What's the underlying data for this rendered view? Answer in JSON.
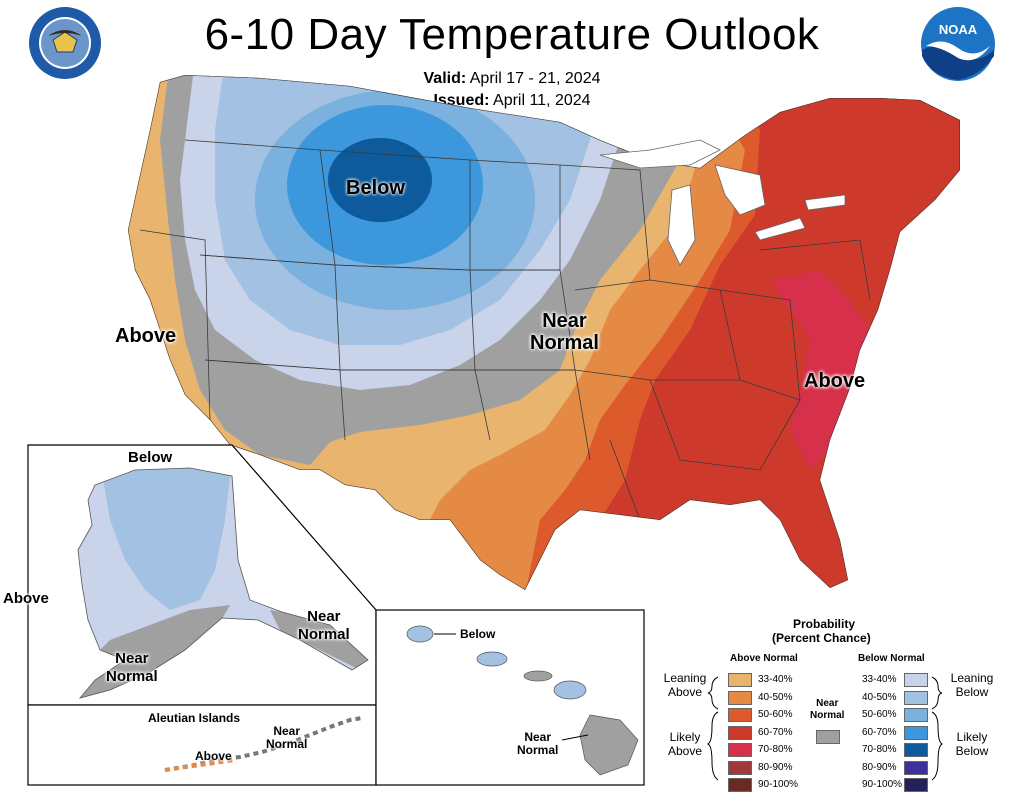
{
  "header": {
    "title": "6-10 Day Temperature Outlook",
    "valid_label": "Valid:",
    "valid_value": "April 17 - 21, 2024",
    "issued_label": "Issued:",
    "issued_value": "April 11, 2024",
    "noaa_logo_text": "NOAA"
  },
  "map_labels": {
    "conus_below": "Below",
    "conus_above_west": "Above",
    "conus_near_1": "Near",
    "conus_near_2": "Normal",
    "conus_above_east": "Above",
    "ak_below": "Below",
    "ak_above": "Above",
    "ak_near_sw_1": "Near",
    "ak_near_sw_2": "Normal",
    "ak_near_se_1": "Near",
    "ak_near_se_2": "Normal",
    "aleutian_title": "Aleutian Islands",
    "aleutian_above": "Above",
    "aleutian_near_1": "Near",
    "aleutian_near_2": "Normal",
    "hi_below": "Below",
    "hi_near_1": "Near",
    "hi_near_2": "Normal"
  },
  "legend": {
    "title_1": "Probability",
    "title_2": "(Percent Chance)",
    "above_head": "Above Normal",
    "below_head": "Below Normal",
    "near_label_1": "Near",
    "near_label_2": "Normal",
    "leaning_above_1": "Leaning",
    "leaning_above_2": "Above",
    "likely_above_1": "Likely",
    "likely_above_2": "Above",
    "leaning_below_1": "Leaning",
    "leaning_below_2": "Below",
    "likely_below_1": "Likely",
    "likely_below_2": "Below",
    "ranges": [
      "33-40%",
      "40-50%",
      "50-60%",
      "60-70%",
      "70-80%",
      "80-90%",
      "90-100%"
    ],
    "above_colors": [
      "#e9b46e",
      "#e58a45",
      "#dd5a2c",
      "#cd3a2b",
      "#d6304a",
      "#9e3a3a",
      "#6b2a21"
    ],
    "below_colors": [
      "#c9d3ea",
      "#a3c1e2",
      "#7ab1de",
      "#3c97dc",
      "#0d5a9c",
      "#3f3199",
      "#232258"
    ],
    "near_color": "#a0a0a0"
  }
}
